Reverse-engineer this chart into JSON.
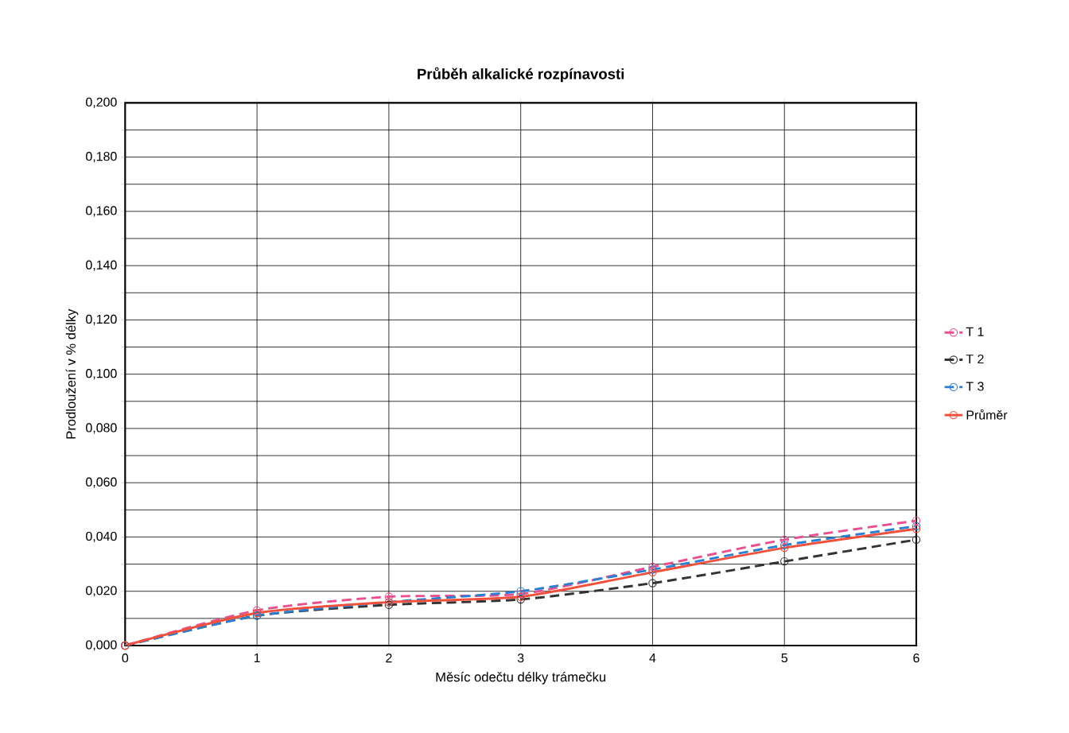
{
  "chart_data": {
    "type": "line",
    "title": "Průběh alkalické rozpínavosti",
    "xlabel": "Měsíc odečtu délky trámečku",
    "ylabel": "Prodloužení v % délky",
    "x": [
      0,
      1,
      2,
      3,
      4,
      5,
      6
    ],
    "series": [
      {
        "name": "T 1",
        "color": "#e8508f",
        "line_style": "dashed",
        "values": [
          0,
          0.013,
          0.018,
          0.019,
          0.029,
          0.039,
          0.046
        ]
      },
      {
        "name": "T 2",
        "color": "#333333",
        "line_style": "dashed",
        "values": [
          0,
          0.011,
          0.015,
          0.017,
          0.023,
          0.031,
          0.039
        ]
      },
      {
        "name": "T 3",
        "color": "#2a7fd0",
        "line_style": "dashed",
        "values": [
          0,
          0.011,
          0.016,
          0.02,
          0.028,
          0.037,
          0.044
        ]
      },
      {
        "name": "Průměr",
        "color": "#f0503c",
        "line_style": "solid",
        "values": [
          0,
          0.012,
          0.016,
          0.018,
          0.027,
          0.036,
          0.043
        ]
      }
    ],
    "xlim": [
      0,
      6
    ],
    "xticks": [
      0,
      1,
      2,
      3,
      4,
      5,
      6
    ],
    "ylim": [
      0,
      0.2
    ],
    "yticks": [
      {
        "value": 0,
        "label": "0,000"
      },
      {
        "value": 0.01,
        "label": null
      },
      {
        "value": 0.02,
        "label": "0,020"
      },
      {
        "value": 0.03,
        "label": null
      },
      {
        "value": 0.04,
        "label": "0,040"
      },
      {
        "value": 0.05,
        "label": null
      },
      {
        "value": 0.06,
        "label": "0,060"
      },
      {
        "value": 0.07,
        "label": null
      },
      {
        "value": 0.08,
        "label": "0,080"
      },
      {
        "value": 0.09,
        "label": null
      },
      {
        "value": 0.1,
        "label": "0,100"
      },
      {
        "value": 0.11,
        "label": null
      },
      {
        "value": 0.12,
        "label": "0,120"
      },
      {
        "value": 0.13,
        "label": null
      },
      {
        "value": 0.14,
        "label": "0,140"
      },
      {
        "value": 0.15,
        "label": null
      },
      {
        "value": 0.16,
        "label": "0,160"
      },
      {
        "value": 0.17,
        "label": null
      },
      {
        "value": 0.18,
        "label": "0,180"
      },
      {
        "value": 0.19,
        "label": null
      },
      {
        "value": 0.2,
        "label": "0,200"
      }
    ],
    "grid": true,
    "legend": "right",
    "marker": "circle"
  }
}
